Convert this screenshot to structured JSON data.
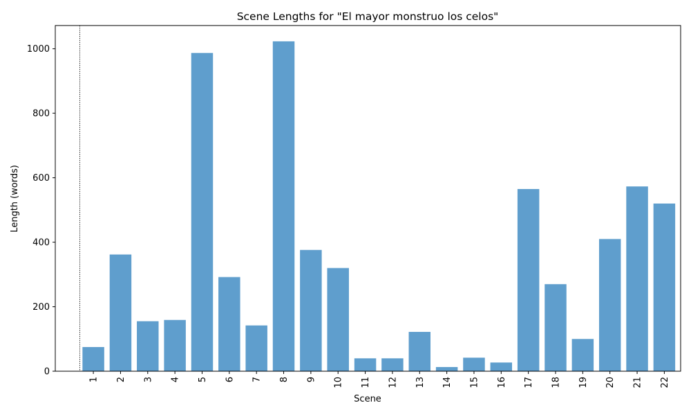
{
  "chart_data": {
    "type": "bar",
    "title": "Scene Lengths for \"El mayor monstruo los celos\"",
    "xlabel": "Scene",
    "ylabel": "Length (words)",
    "categories": [
      "1",
      "2",
      "3",
      "4",
      "5",
      "6",
      "7",
      "8",
      "9",
      "10",
      "11",
      "12",
      "13",
      "14",
      "15",
      "16",
      "17",
      "18",
      "19",
      "20",
      "21",
      "22"
    ],
    "values": [
      75,
      362,
      155,
      159,
      987,
      292,
      142,
      1023,
      376,
      320,
      40,
      40,
      122,
      13,
      42,
      27,
      565,
      270,
      100,
      410,
      573,
      520
    ],
    "yticks": [
      0,
      200,
      400,
      600,
      800,
      1000
    ],
    "ylim": [
      0,
      1072
    ],
    "bar_color": "#5f9ecd",
    "grid": false,
    "reference_line": {
      "x": 0.5,
      "style": "dotted",
      "color": "#000000"
    }
  }
}
